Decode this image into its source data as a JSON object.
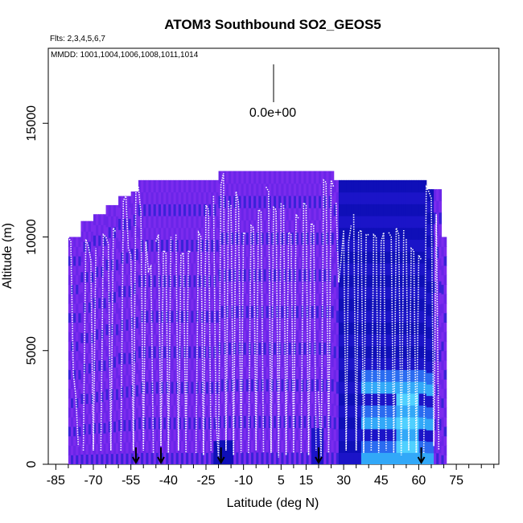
{
  "chart_data": {
    "type": "heatmap",
    "title": "ATOM3 Southbound SO2_GEOS5",
    "flights_label": "Flts: 2,3,4,5,6,7",
    "mmdd_label": "MMDD: 1001,1004,1006,1008,1011,1014",
    "xlabel": "Latitude (deg N)",
    "ylabel": "Altitude (m)",
    "xlim": [
      -88,
      92
    ],
    "ylim": [
      0,
      18300
    ],
    "x_ticks": [
      -85,
      -70,
      -55,
      -40,
      -25,
      -10,
      5,
      15,
      30,
      45,
      60,
      75
    ],
    "x_minor_ticks": [
      -80,
      -75,
      -65,
      -60,
      -50,
      -45,
      -35,
      -30,
      -20,
      -15,
      -5,
      0,
      10,
      20,
      25,
      35,
      40,
      50,
      55,
      65,
      70,
      80,
      85,
      90
    ],
    "y_ticks": [
      0,
      5000,
      10000,
      15000
    ],
    "legend_value": "0.0e+00",
    "arrow_latitudes": [
      -53,
      -43,
      -19,
      20,
      61
    ],
    "colors": {
      "background_purple": "#7B2BEE",
      "violet": "#6A25E8",
      "blue": "#3A22D8",
      "dark_blue": "#1B14C8",
      "navy": "#0F0FB8",
      "mid_blue": "#2A6BF0",
      "light_blue": "#32A8F8",
      "cyan": "#4FD0FF",
      "track": "#ffffff"
    },
    "columns": [
      {
        "lat": -80,
        "top": 10000
      },
      {
        "lat": -75,
        "top": 10700
      },
      {
        "lat": -70,
        "top": 11000
      },
      {
        "lat": -65,
        "top": 11400
      },
      {
        "lat": -60,
        "top": 11800
      },
      {
        "lat": -55,
        "top": 12000
      },
      {
        "lat": -52,
        "top": 12500
      },
      {
        "lat": -20,
        "top": 12900
      },
      {
        "lat": 22,
        "top": 12900
      },
      {
        "lat": 26,
        "top": 12500
      },
      {
        "lat": 63,
        "top": 12100
      },
      {
        "lat": 69,
        "top": 10000
      }
    ],
    "flight_tracks": [
      {
        "x": [
          -81,
          -80,
          -79,
          -78,
          -77,
          -76
        ],
        "y": [
          10000,
          10000,
          9800,
          4000,
          3000,
          800
        ]
      },
      {
        "x": [
          -74,
          -73,
          -72,
          -71,
          -70,
          -69
        ],
        "y": [
          600,
          9900,
          9600,
          9000,
          600,
          9500
        ]
      },
      {
        "x": [
          -67,
          -66,
          -65,
          -64,
          -63,
          -62,
          -61
        ],
        "y": [
          600,
          10100,
          10000,
          9700,
          600,
          10400,
          10200
        ]
      },
      {
        "x": [
          -59,
          -58,
          -57,
          -56,
          -55,
          -54,
          -53
        ],
        "y": [
          600,
          11600,
          11800,
          9500,
          9200,
          600,
          12100
        ]
      },
      {
        "x": [
          -52,
          -51,
          -50,
          -49,
          -48,
          -47,
          -46
        ],
        "y": [
          12200,
          11100,
          600,
          9800,
          8500,
          8700,
          500
        ]
      },
      {
        "x": [
          -45,
          -44,
          -43,
          -42,
          -41,
          -40,
          -39
        ],
        "y": [
          9800,
          10100,
          800,
          9400,
          9300,
          500,
          10000
        ]
      },
      {
        "x": [
          -37,
          -36,
          -35,
          -34,
          -33,
          -32,
          -31
        ],
        "y": [
          10100,
          600,
          9200,
          9300,
          500,
          9400,
          9300
        ]
      },
      {
        "x": [
          -29,
          -28,
          -27,
          -26,
          -25,
          -24,
          -23
        ],
        "y": [
          500,
          10200,
          10000,
          400,
          11400,
          11200,
          600
        ]
      },
      {
        "x": [
          -22,
          -21,
          -20,
          -19,
          -18,
          -17,
          -16
        ],
        "y": [
          11800,
          2000,
          300,
          12300,
          12800,
          600,
          11600
        ]
      },
      {
        "x": [
          -15,
          -14,
          -13,
          -12,
          -11,
          -10,
          -9
        ],
        "y": [
          11400,
          400,
          12000,
          11500,
          500,
          10200,
          10100
        ]
      },
      {
        "x": [
          -8,
          -7,
          -6,
          -5,
          -4,
          -3,
          -2
        ],
        "y": [
          500,
          10500,
          10400,
          600,
          11200,
          11100,
          500
        ]
      },
      {
        "x": [
          -1,
          0,
          1,
          2,
          3,
          4,
          5
        ],
        "y": [
          12200,
          12000,
          500,
          11300,
          11200,
          300,
          11500
        ]
      },
      {
        "x": [
          6,
          7,
          8,
          9,
          10,
          11,
          12
        ],
        "y": [
          11400,
          400,
          10200,
          10100,
          500,
          11000,
          10800
        ]
      },
      {
        "x": [
          13,
          14,
          15,
          16,
          17,
          18,
          19
        ],
        "y": [
          500,
          11500,
          11400,
          400,
          10600,
          10500,
          600
        ]
      },
      {
        "x": [
          20,
          21,
          22,
          23,
          24,
          25,
          26
        ],
        "y": [
          3200,
          300,
          12500,
          12400,
          500,
          12500,
          12200
        ]
      },
      {
        "x": [
          27,
          28,
          29,
          30,
          31,
          32,
          33
        ],
        "y": [
          11500,
          8000,
          9000,
          10300,
          600,
          9800,
          10500
        ]
      },
      {
        "x": [
          34,
          35,
          36,
          37,
          38,
          39,
          40
        ],
        "y": [
          11000,
          600,
          10200,
          10300,
          500,
          10100,
          10100
        ]
      },
      {
        "x": [
          41,
          42,
          43,
          44,
          45,
          46,
          47
        ],
        "y": [
          600,
          10100,
          10000,
          500,
          9800,
          10200,
          600
        ]
      },
      {
        "x": [
          48,
          49,
          50,
          51,
          52,
          53,
          54
        ],
        "y": [
          10200,
          10000,
          500,
          10400,
          10100,
          400,
          10300
        ]
      },
      {
        "x": [
          55,
          56,
          57,
          58,
          59,
          60,
          61
        ],
        "y": [
          9900,
          600,
          9500,
          9400,
          500,
          9200,
          9000
        ]
      },
      {
        "x": [
          62,
          63,
          64,
          65,
          66,
          67,
          68
        ],
        "y": [
          500,
          12200,
          12000,
          11700,
          800,
          11000,
          600
        ]
      }
    ]
  }
}
